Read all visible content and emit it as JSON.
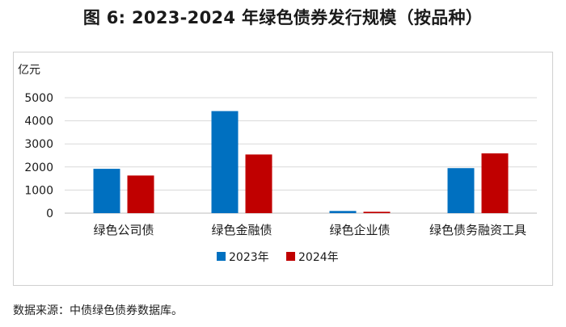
{
  "title": "图 6: 2023-2024 年绿色债券发行规模（按品种）",
  "source": "数据来源：中债绿色债券数据库。",
  "chart_data": {
    "type": "bar",
    "title": "图 6: 2023-2024 年绿色债券发行规模（按品种）",
    "ylabel": "亿元",
    "xlabel": "",
    "ylim": [
      0,
      5000
    ],
    "yticks": [
      0,
      1000,
      2000,
      3000,
      4000,
      5000
    ],
    "grid": true,
    "legend_position": "bottom-center",
    "categories": [
      "绿色公司债",
      "绿色金融债",
      "绿色企业债",
      "绿色债务融资工具"
    ],
    "series": [
      {
        "name": "2023年",
        "color": "#0070c0",
        "values": [
          1920,
          4420,
          95,
          1950
        ]
      },
      {
        "name": "2024年",
        "color": "#c00000",
        "values": [
          1630,
          2540,
          60,
          2590
        ]
      }
    ]
  }
}
